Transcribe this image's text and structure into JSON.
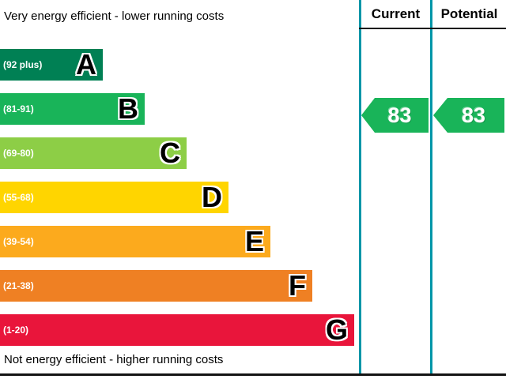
{
  "captions": {
    "top": "Very energy efficient - lower running costs",
    "bottom": "Not energy efficient - higher running costs"
  },
  "columns": {
    "current": "Current",
    "potential": "Potential"
  },
  "chart_data": {
    "type": "bar",
    "bands": [
      {
        "letter": "A",
        "range": "(92 plus)",
        "color": "#008054"
      },
      {
        "letter": "B",
        "range": "(81-91)",
        "color": "#19b459"
      },
      {
        "letter": "C",
        "range": "(69-80)",
        "color": "#8dce46"
      },
      {
        "letter": "D",
        "range": "(55-68)",
        "color": "#ffd500"
      },
      {
        "letter": "E",
        "range": "(39-54)",
        "color": "#fcaa1d"
      },
      {
        "letter": "F",
        "range": "(21-38)",
        "color": "#ef8023"
      },
      {
        "letter": "G",
        "range": "(1-20)",
        "color": "#e9153b"
      }
    ],
    "current": {
      "value": 83,
      "band": "B",
      "color": "#19b459"
    },
    "potential": {
      "value": 83,
      "band": "B",
      "color": "#19b459"
    }
  }
}
